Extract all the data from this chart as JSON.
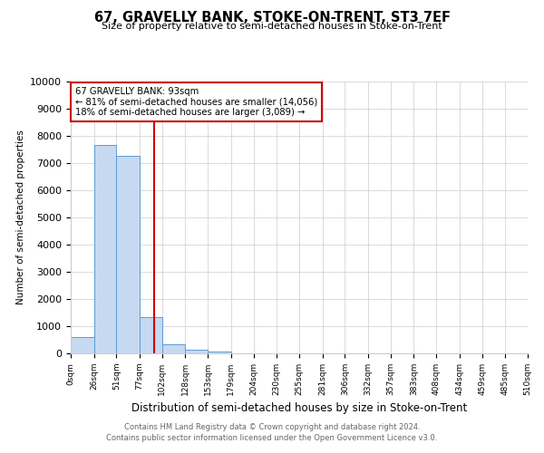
{
  "title": "67, GRAVELLY BANK, STOKE-ON-TRENT, ST3 7EF",
  "subtitle": "Size of property relative to semi-detached houses in Stoke-on-Trent",
  "xlabel": "Distribution of semi-detached houses by size in Stoke-on-Trent",
  "ylabel": "Number of semi-detached properties",
  "footer_line1": "Contains HM Land Registry data © Crown copyright and database right 2024.",
  "footer_line2": "Contains public sector information licensed under the Open Government Licence v3.0.",
  "bar_edges": [
    0,
    26,
    51,
    77,
    102,
    128,
    153,
    179,
    204,
    230,
    255,
    281,
    306,
    332,
    357,
    383,
    408,
    434,
    459,
    485,
    510
  ],
  "bar_heights": [
    600,
    7650,
    7250,
    1350,
    320,
    130,
    80,
    0,
    0,
    0,
    0,
    0,
    0,
    0,
    0,
    0,
    0,
    0,
    0,
    0
  ],
  "bar_color": "#c6d9f0",
  "bar_edge_color": "#5b9bd5",
  "property_size": 93,
  "vline_color": "#cc0000",
  "annotation_text_line1": "67 GRAVELLY BANK: 93sqm",
  "annotation_text_line2": "← 81% of semi-detached houses are smaller (14,056)",
  "annotation_text_line3": "18% of semi-detached houses are larger (3,089) →",
  "annotation_box_color": "#cc0000",
  "annotation_fill_color": "#ffffff",
  "ylim": [
    0,
    10000
  ],
  "xlim": [
    0,
    510
  ],
  "yticks": [
    0,
    1000,
    2000,
    3000,
    4000,
    5000,
    6000,
    7000,
    8000,
    9000,
    10000
  ],
  "background_color": "#ffffff",
  "grid_color": "#cccccc"
}
